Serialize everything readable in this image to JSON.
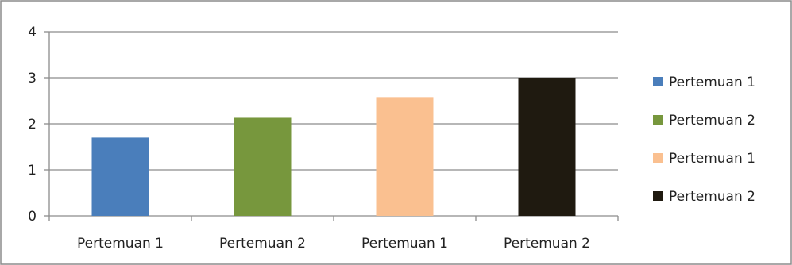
{
  "chart_data": {
    "type": "bar",
    "categories": [
      "Pertemuan 1",
      "Pertemuan 2",
      "Pertemuan 1",
      "Pertemuan 2"
    ],
    "values": [
      1.7,
      2.13,
      2.58,
      3.0
    ],
    "colors": [
      "#4a7ebb",
      "#77973d",
      "#fac090",
      "#1f1a10"
    ],
    "yticks": [
      "0",
      "1",
      "2",
      "3",
      "4"
    ],
    "ylim": [
      0,
      4
    ],
    "grid": true,
    "legend": {
      "placement": "right",
      "entries": [
        "Pertemuan 1",
        "Pertemuan 2",
        "Pertemuan 1",
        "Pertemuan 2"
      ]
    }
  }
}
